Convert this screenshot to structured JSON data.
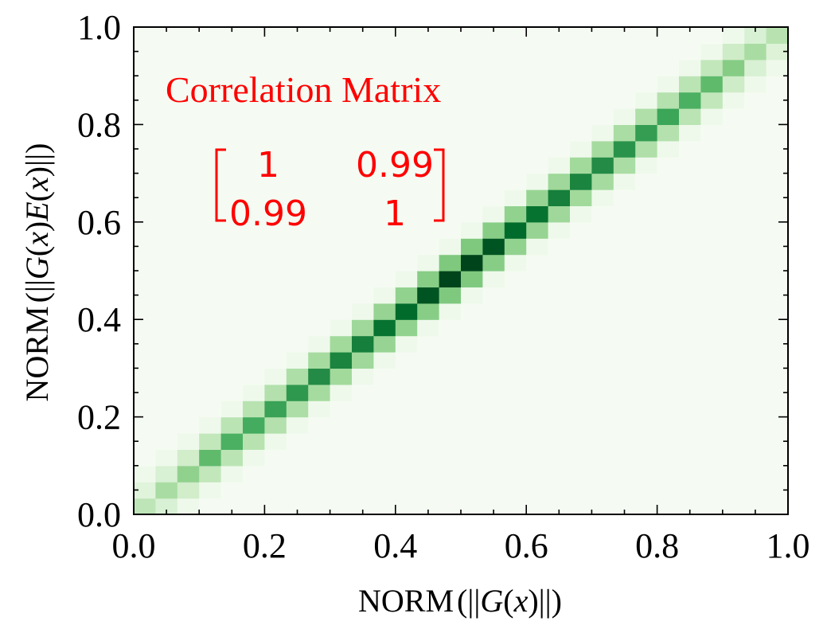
{
  "chart_data": {
    "type": "heatmap",
    "title": "",
    "xlabel_parts": [
      "NORM",
      "(||",
      "G",
      "(",
      "x",
      ")||)"
    ],
    "ylabel_parts": [
      "NORM",
      "(||",
      "G",
      "(",
      "x",
      ")",
      "E",
      "(",
      "x",
      ")||)"
    ],
    "xlim": [
      0.0,
      1.0
    ],
    "ylim": [
      0.0,
      1.0
    ],
    "xticks": [
      "0.0",
      "0.2",
      "0.4",
      "0.6",
      "0.8",
      "1.0"
    ],
    "yticks": [
      "0.0",
      "0.2",
      "0.4",
      "0.6",
      "0.8",
      "1.0"
    ],
    "bins": 30,
    "colormap": "Greens",
    "colors": {
      "low": "#f7fcf5",
      "high": "#00441b",
      "annotation": "#ff0000"
    },
    "diagonal_peak_intensity": [
      0.28,
      0.35,
      0.42,
      0.55,
      0.6,
      0.62,
      0.66,
      0.7,
      0.75,
      0.78,
      0.8,
      0.85,
      0.88,
      0.95,
      1.0,
      1.0,
      0.95,
      0.88,
      0.85,
      0.8,
      0.78,
      0.75,
      0.72,
      0.68,
      0.65,
      0.6,
      0.55,
      0.45,
      0.35,
      0.3
    ],
    "annotation": {
      "title": "Correlation Matrix",
      "matrix": [
        [
          "1",
          "0.99"
        ],
        [
          "0.99",
          "1"
        ]
      ]
    }
  }
}
